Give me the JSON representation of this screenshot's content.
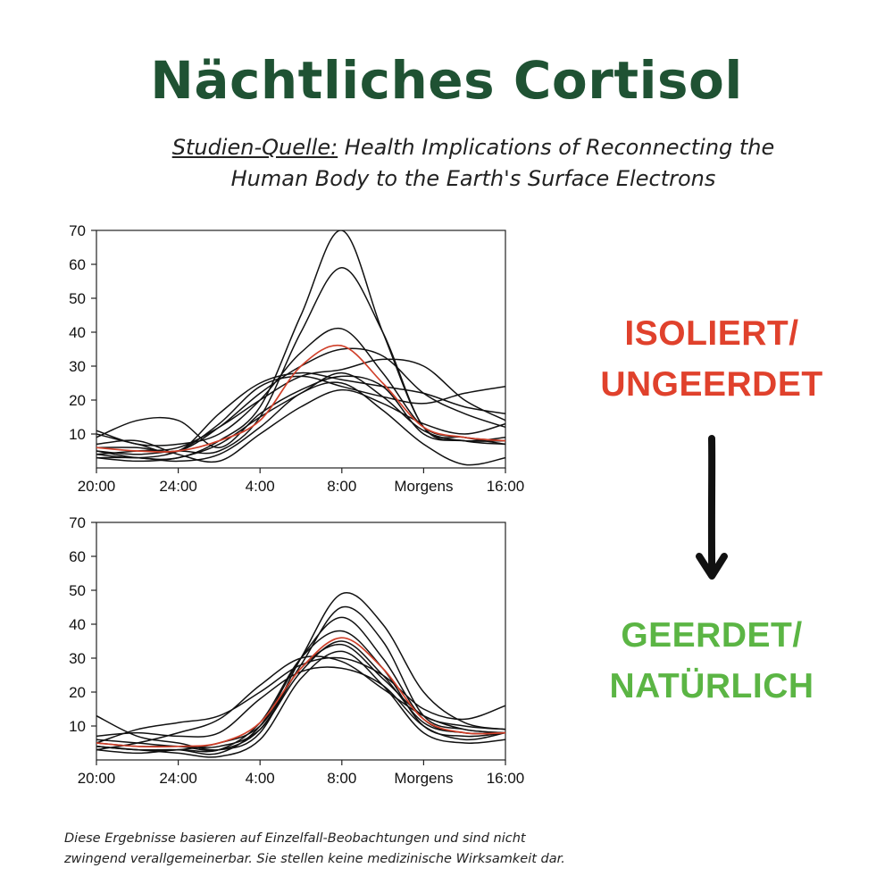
{
  "title": "Nächtliches Cortisol",
  "source": {
    "label": "Studien-Quelle:",
    "text_line1": " Health Implications of Reconnecting the",
    "text_line2": "Human Body to the Earth's Surface Electrons"
  },
  "state_top": {
    "line1": "ISOLIERT/",
    "line2": "UNGEERDET",
    "color": "#e0412c"
  },
  "state_bottom": {
    "line1": "GEERDET/",
    "line2": "NATÜRLICH",
    "color": "#5bb544"
  },
  "arrow_icon": "down-arrow-icon",
  "disclaimer": {
    "line1": "Diese Ergebnisse basieren auf Einzelfall-Beobachtungen und sind nicht",
    "line2": "zwingend verallgemeinerbar. Sie stellen keine medizinische Wirksamkeit dar."
  },
  "chart_data": [
    {
      "type": "line",
      "ylim": [
        0,
        70
      ],
      "y_ticks": [
        "10",
        "20",
        "30",
        "40",
        "50",
        "60",
        "70"
      ],
      "y_tick_values": [
        10,
        20,
        30,
        40,
        50,
        60,
        70
      ],
      "x_tick_labels": [
        "20:00",
        "24:00",
        "4:00",
        "8:00",
        "Morgens",
        "16:00"
      ],
      "x_tick_hours": [
        0,
        4,
        8,
        12,
        16,
        20
      ],
      "x_hours": [
        0,
        2,
        4,
        6,
        8,
        10,
        12,
        14,
        16,
        18,
        20
      ],
      "grid": false,
      "series": [
        {
          "color": "#111111",
          "values": [
            5,
            3,
            3,
            8,
            18,
            45,
            70,
            40,
            12,
            8,
            7
          ]
        },
        {
          "color": "#111111",
          "values": [
            5,
            4,
            5,
            5,
            15,
            40,
            59,
            40,
            12,
            9,
            7
          ]
        },
        {
          "color": "#111111",
          "values": [
            11,
            7,
            7,
            10,
            20,
            34,
            41,
            28,
            12,
            9,
            8
          ]
        },
        {
          "color": "#111111",
          "values": [
            6,
            6,
            5,
            12,
            22,
            30,
            35,
            33,
            22,
            16,
            12
          ]
        },
        {
          "color": "#111111",
          "values": [
            4,
            5,
            6,
            12,
            20,
            27,
            29,
            32,
            30,
            20,
            14
          ]
        },
        {
          "color": "#111111",
          "values": [
            9,
            14,
            14,
            6,
            16,
            23,
            27,
            24,
            10,
            8,
            8
          ]
        },
        {
          "color": "#111111",
          "values": [
            10,
            7,
            5,
            16,
            25,
            28,
            26,
            24,
            22,
            18,
            16
          ]
        },
        {
          "color": "#111111",
          "values": [
            4,
            3,
            5,
            13,
            24,
            27,
            24,
            21,
            19,
            22,
            24
          ]
        },
        {
          "color": "#111111",
          "values": [
            3,
            3,
            2,
            4,
            12,
            22,
            25,
            17,
            7,
            1,
            3
          ]
        },
        {
          "color": "#111111",
          "values": [
            7,
            8,
            4,
            2,
            10,
            18,
            23,
            19,
            13,
            10,
            13
          ]
        },
        {
          "color": "#111111",
          "values": [
            3,
            2,
            3,
            7,
            15,
            22,
            28,
            21,
            11,
            8,
            9
          ]
        },
        {
          "color": "#d0402a",
          "values": [
            6,
            5,
            5,
            8,
            14,
            30,
            36,
            25,
            12,
            9,
            8
          ]
        }
      ]
    },
    {
      "type": "line",
      "ylim": [
        0,
        70
      ],
      "y_ticks": [
        "10",
        "20",
        "30",
        "40",
        "50",
        "60",
        "70"
      ],
      "y_tick_values": [
        10,
        20,
        30,
        40,
        50,
        60,
        70
      ],
      "x_tick_labels": [
        "20:00",
        "24:00",
        "4:00",
        "8:00",
        "Morgens",
        "16:00"
      ],
      "x_tick_hours": [
        0,
        4,
        8,
        12,
        16,
        20
      ],
      "x_hours": [
        0,
        2,
        4,
        6,
        8,
        10,
        12,
        14,
        16,
        18,
        20
      ],
      "grid": false,
      "series": [
        {
          "color": "#111111",
          "values": [
            13,
            7,
            5,
            3,
            8,
            30,
            49,
            40,
            20,
            11,
            9
          ]
        },
        {
          "color": "#111111",
          "values": [
            5,
            4,
            4,
            3,
            9,
            28,
            45,
            35,
            13,
            9,
            8
          ]
        },
        {
          "color": "#111111",
          "values": [
            4,
            3,
            3,
            2,
            10,
            30,
            42,
            30,
            12,
            8,
            8
          ]
        },
        {
          "color": "#111111",
          "values": [
            3,
            2,
            3,
            3,
            11,
            30,
            38,
            27,
            10,
            7,
            8
          ]
        },
        {
          "color": "#111111",
          "values": [
            6,
            5,
            4,
            4,
            9,
            26,
            35,
            25,
            11,
            8,
            8
          ]
        },
        {
          "color": "#111111",
          "values": [
            4,
            3,
            3,
            5,
            10,
            27,
            34,
            24,
            13,
            10,
            9
          ]
        },
        {
          "color": "#111111",
          "values": [
            5,
            9,
            11,
            13,
            20,
            28,
            30,
            25,
            15,
            12,
            16
          ]
        },
        {
          "color": "#111111",
          "values": [
            3,
            5,
            8,
            12,
            22,
            30,
            29,
            21,
            13,
            9,
            8
          ]
        },
        {
          "color": "#111111",
          "values": [
            7,
            8,
            7,
            8,
            18,
            26,
            27,
            22,
            10,
            6,
            8
          ]
        },
        {
          "color": "#111111",
          "values": [
            4,
            3,
            2,
            1,
            6,
            24,
            32,
            22,
            8,
            5,
            6
          ]
        },
        {
          "color": "#d0402a",
          "values": [
            5,
            4,
            4,
            5,
            11,
            27,
            36,
            27,
            12,
            8,
            8
          ]
        }
      ]
    }
  ]
}
